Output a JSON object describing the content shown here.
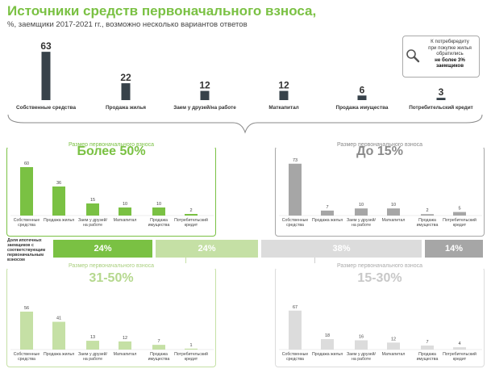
{
  "header": {
    "title": "Источники средств первоначального взноса,",
    "subtitle": "%, заемщики 2017-2021 гг., возможно несколько вариантов ответов"
  },
  "callout": {
    "line1": "К потребкредиту",
    "line2": "при покупке жилья",
    "line3": "обратились",
    "line4": "не более 3%",
    "line5": "заемщиков",
    "icon": "magnifier-icon"
  },
  "shares": {
    "label": "Доля ипотечных заемщиков с соответствующим первоначальным взносом",
    "values": [
      "24%",
      "24%",
      "38%",
      "14%"
    ],
    "colors": [
      "#7ac143",
      "#c5e0a5",
      "#dcdcdc",
      "#a6a6a6"
    ]
  },
  "chart_data": [
    {
      "type": "bar",
      "title": "Источники средств первоначального взноса,",
      "categories": [
        "Собственные средства",
        "Продажа жилья",
        "Заем у друзей/на работе",
        "Маткапитал",
        "Продажа имущества",
        "Потребительский кредит"
      ],
      "values": [
        63,
        22,
        12,
        12,
        6,
        3
      ],
      "color": "#37424a"
    },
    {
      "type": "bar",
      "caption": "Размер первоначального взноса",
      "title": "Более 50%",
      "categories": [
        "Собственные средства",
        "Продажа жилья",
        "Заем у друзей/ на работе",
        "Маткапитал",
        "Продажа имущества",
        "Потребительский кредит"
      ],
      "values": [
        60,
        36,
        15,
        10,
        10,
        2
      ],
      "color": "#7ac143"
    },
    {
      "type": "bar",
      "caption": "Размер первоначального взноса",
      "title": "До 15%",
      "categories": [
        "Собственные средства",
        "Продажа жилья",
        "Заем у друзей/ на работе",
        "Маткапитал",
        "Продажа имущества",
        "Потребительский кредит"
      ],
      "values": [
        73,
        7,
        10,
        10,
        2,
        5
      ],
      "color": "#a6a6a6"
    },
    {
      "type": "bar",
      "caption": "Размер первоначального взноса",
      "title": "31-50%",
      "categories": [
        "Собственные средства",
        "Продажа жилья",
        "Заем у друзей/ на работе",
        "Маткапитал",
        "Продажа имущества",
        "Потребительский кредит"
      ],
      "values": [
        56,
        41,
        13,
        12,
        7,
        1
      ],
      "color": "#c5e0a5"
    },
    {
      "type": "bar",
      "caption": "Размер первоначального взноса",
      "title": "15-30%",
      "categories": [
        "Собственные средства",
        "Продажа жилья",
        "Заем у друзей/ на работе",
        "Маткапитал",
        "Продажа имущества",
        "Потребительский кредит"
      ],
      "values": [
        67,
        18,
        16,
        12,
        7,
        4
      ],
      "color": "#dcdcdc"
    }
  ]
}
